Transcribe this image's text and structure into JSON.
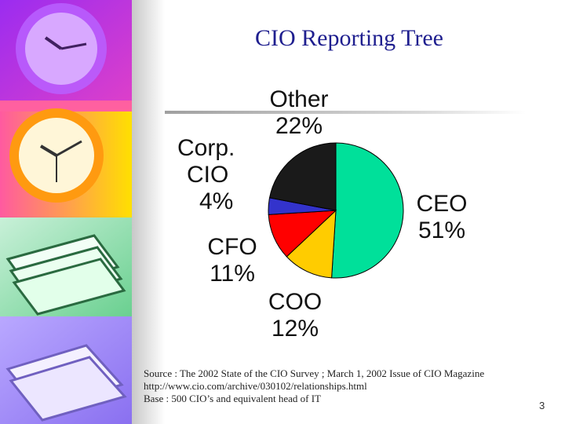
{
  "slide": {
    "title": "CIO Reporting Tree",
    "page_number": "3",
    "source_lines": [
      "Source : The 2002 State of the CIO Survey ; March 1, 2002 Issue of CIO Magazine",
      "http://www.cio.com/archive/030102/relationships.html",
      "Base :   500 CIO’s and equivalent head of IT"
    ]
  },
  "chart_data": {
    "type": "pie",
    "slices": [
      {
        "name": "CEO",
        "value": 51,
        "label": "CEO",
        "pct": "51%",
        "color": "#00e09a"
      },
      {
        "name": "COO",
        "value": 12,
        "label": "COO",
        "pct": "12%",
        "color": "#ffcc00"
      },
      {
        "name": "CFO",
        "value": 11,
        "label": "CFO",
        "pct": "11%",
        "color": "#ff0000"
      },
      {
        "name": "Corp. CIO",
        "value": 4,
        "label": "Corp. CIO",
        "pct": "4%",
        "color": "#3333cc"
      },
      {
        "name": "Other",
        "value": 22,
        "label": "Other",
        "pct": "22%",
        "color": "#1a1a1a"
      }
    ]
  }
}
